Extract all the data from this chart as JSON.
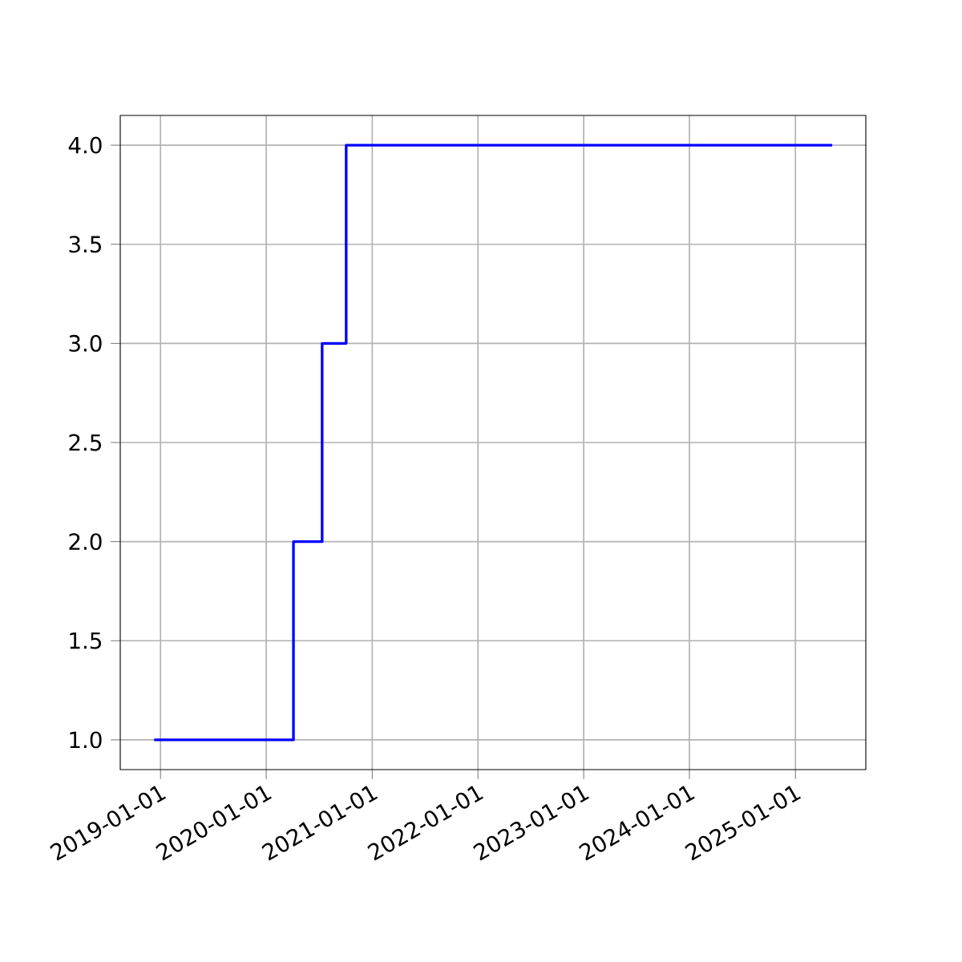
{
  "chart_data": {
    "type": "step",
    "x": [
      "2018-12-10",
      "2020-04-04",
      "2020-07-12",
      "2020-10-03",
      "2025-05-08"
    ],
    "values": [
      1,
      2,
      3,
      4,
      4
    ],
    "color": "#0000ff",
    "xlim": [
      "2018-08-15",
      "2025-09-01"
    ],
    "ylim": [
      0.85,
      4.15
    ],
    "xticks": [
      "2019-01-01",
      "2020-01-01",
      "2021-01-01",
      "2022-01-01",
      "2023-01-01",
      "2024-01-01",
      "2025-01-01"
    ],
    "yticks": [
      {
        "value": 1,
        "label": "1.0"
      },
      {
        "value": 1.5,
        "label": "1.5"
      },
      {
        "value": 2,
        "label": "2.0"
      },
      {
        "value": 2.5,
        "label": "2.5"
      },
      {
        "value": 3,
        "label": "3.0"
      },
      {
        "value": 3.5,
        "label": "3.5"
      },
      {
        "value": 4,
        "label": "4.0"
      }
    ],
    "grid": true
  }
}
